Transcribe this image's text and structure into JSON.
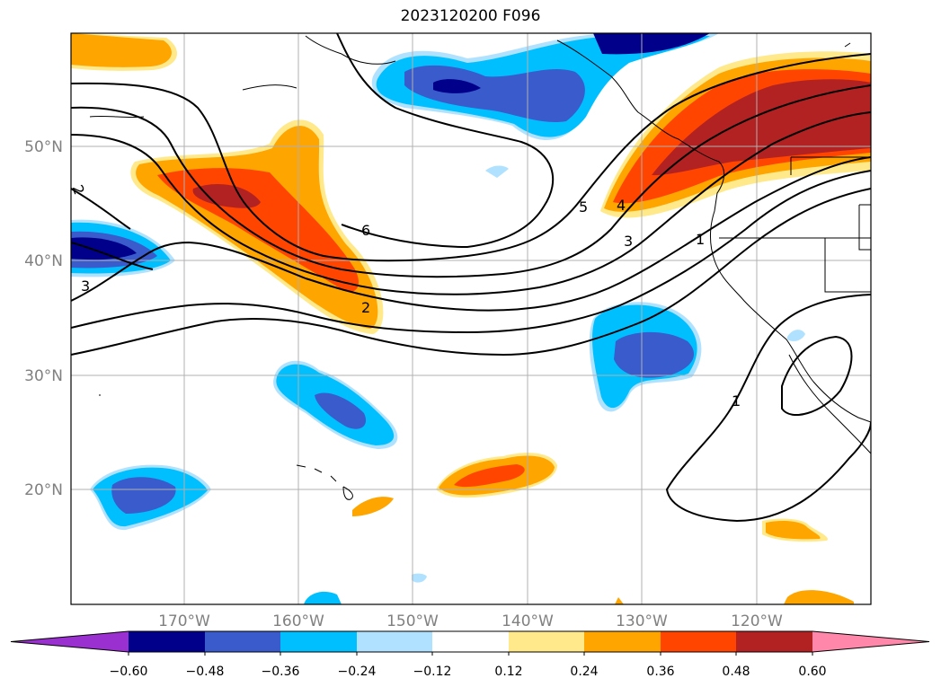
{
  "map": {
    "title": "2023120200 F096",
    "lat_labels": [
      "50°N",
      "40°N",
      "30°N",
      "20°N"
    ],
    "lon_labels": [
      "170°W",
      "160°W",
      "150°W",
      "140°W",
      "130°W",
      "120°W"
    ],
    "contour_labels": [
      "2",
      "3",
      "6",
      "2",
      "5",
      "4",
      "3",
      "1",
      "1"
    ],
    "colorbar": {
      "ticks": [
        "−0.60",
        "−0.48",
        "−0.36",
        "−0.24",
        "−0.12",
        "0.12",
        "0.24",
        "0.36",
        "0.48",
        "0.60"
      ],
      "colors": [
        "#9b30d0",
        "#00008b",
        "#3a5bcc",
        "#00bfff",
        "#b0e2ff",
        "#ffffff",
        "#ffe98a",
        "#ffa500",
        "#ff4500",
        "#b22222",
        "#ff88aa"
      ]
    }
  }
}
